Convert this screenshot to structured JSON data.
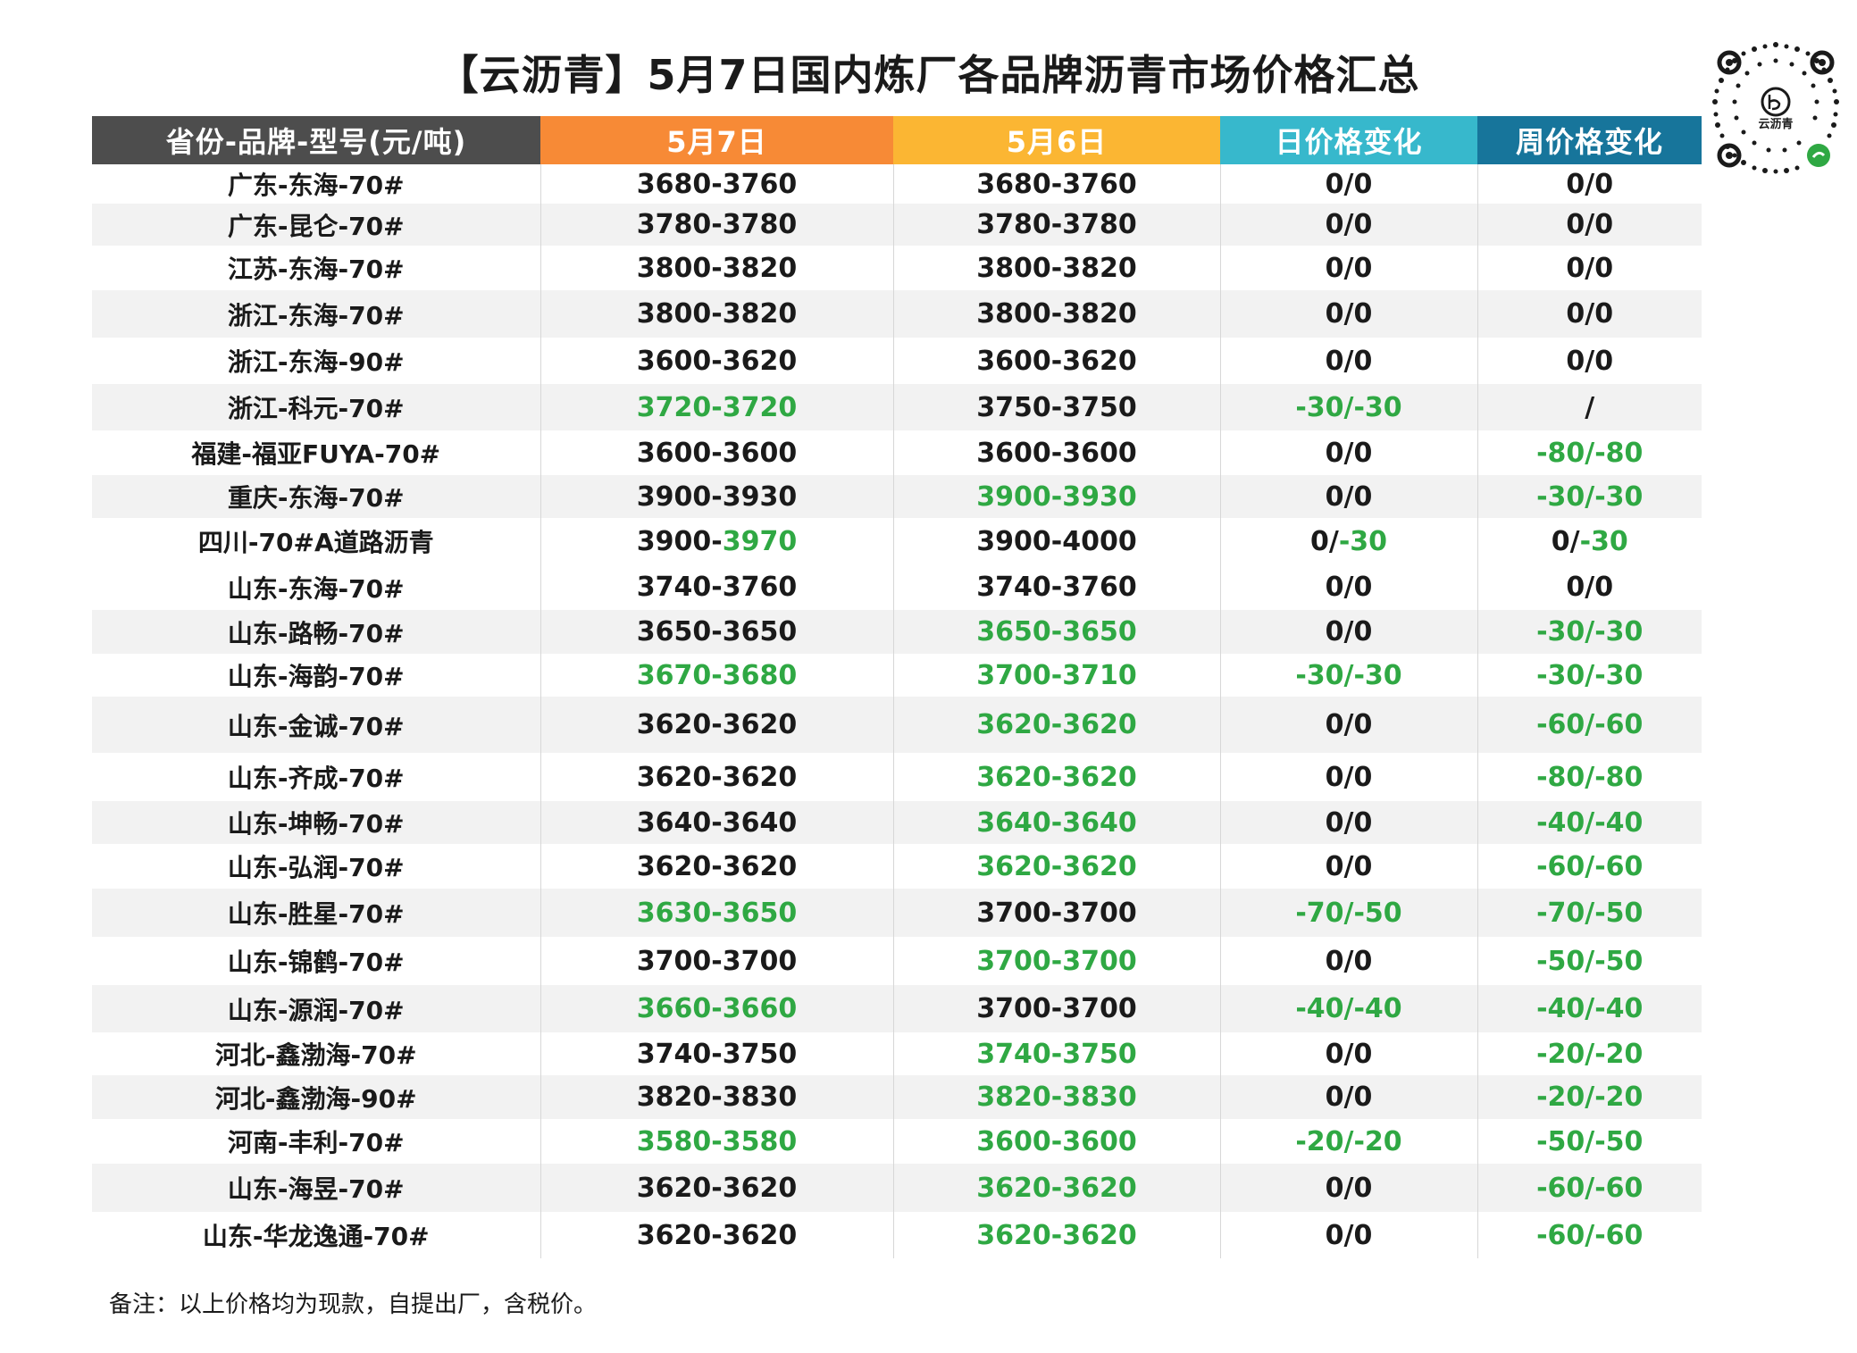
{
  "title": "【云沥青】5月7日国内炼厂各品牌沥青市场价格汇总",
  "logo_text": "云沥青",
  "colors": {
    "header_brand": "#4d4d4d",
    "header_may7": "#f78a36",
    "header_may6": "#fbb633",
    "header_day": "#37b8cc",
    "header_week": "#17759b",
    "green": "#2fa843",
    "row_alt": "#f2f2f2"
  },
  "columns": [
    "省份-品牌-型号(元/吨)",
    "5月7日",
    "5月6日",
    "日价格变化",
    "周价格变化"
  ],
  "rows": [
    {
      "brand": "广东-东海-70#",
      "may7": [
        {
          "t": "3680-3760",
          "c": "d"
        }
      ],
      "may6": [
        {
          "t": "3680-3760",
          "c": "d"
        }
      ],
      "day": [
        {
          "t": "0/0",
          "c": "d"
        }
      ],
      "week": [
        {
          "t": "0/0",
          "c": "d"
        }
      ]
    },
    {
      "brand": "广东-昆仑-70#",
      "may7": [
        {
          "t": "3780-3780",
          "c": "d"
        }
      ],
      "may6": [
        {
          "t": "3780-3780",
          "c": "d"
        }
      ],
      "day": [
        {
          "t": "0/0",
          "c": "d"
        }
      ],
      "week": [
        {
          "t": "0/0",
          "c": "d"
        }
      ]
    },
    {
      "brand": "江苏-东海-70#",
      "may7": [
        {
          "t": "3800-3820",
          "c": "d"
        }
      ],
      "may6": [
        {
          "t": "3800-3820",
          "c": "d"
        }
      ],
      "day": [
        {
          "t": "0/0",
          "c": "d"
        }
      ],
      "week": [
        {
          "t": "0/0",
          "c": "d"
        }
      ]
    },
    {
      "brand": "浙江-东海-70#",
      "may7": [
        {
          "t": "3800-3820",
          "c": "d"
        }
      ],
      "may6": [
        {
          "t": "3800-3820",
          "c": "d"
        }
      ],
      "day": [
        {
          "t": "0/0",
          "c": "d"
        }
      ],
      "week": [
        {
          "t": "0/0",
          "c": "d"
        }
      ]
    },
    {
      "brand": "浙江-东海-90#",
      "may7": [
        {
          "t": "3600-3620",
          "c": "d"
        }
      ],
      "may6": [
        {
          "t": "3600-3620",
          "c": "d"
        }
      ],
      "day": [
        {
          "t": "0/0",
          "c": "d"
        }
      ],
      "week": [
        {
          "t": "0/0",
          "c": "d"
        }
      ]
    },
    {
      "brand": "浙江-科元-70#",
      "may7": [
        {
          "t": "3720-3720",
          "c": "g"
        }
      ],
      "may6": [
        {
          "t": "3750-3750",
          "c": "d"
        }
      ],
      "day": [
        {
          "t": "-30/-30",
          "c": "g"
        }
      ],
      "week": [
        {
          "t": "/",
          "c": "d"
        }
      ]
    },
    {
      "brand": "福建-福亚FUYA-70#",
      "may7": [
        {
          "t": "3600-3600",
          "c": "d"
        }
      ],
      "may6": [
        {
          "t": "3600-3600",
          "c": "d"
        }
      ],
      "day": [
        {
          "t": "0/0",
          "c": "d"
        }
      ],
      "week": [
        {
          "t": "-80/-80",
          "c": "g"
        }
      ]
    },
    {
      "brand": "重庆-东海-70#",
      "may7": [
        {
          "t": "3900-3930",
          "c": "d"
        }
      ],
      "may6": [
        {
          "t": "3900-3930",
          "c": "g"
        }
      ],
      "day": [
        {
          "t": "0/0",
          "c": "d"
        }
      ],
      "week": [
        {
          "t": "-30/-30",
          "c": "g"
        }
      ]
    },
    {
      "brand": "四川-70#A道路沥青",
      "may7": [
        {
          "t": "3900-",
          "c": "d"
        },
        {
          "t": "3970",
          "c": "g"
        }
      ],
      "may6": [
        {
          "t": "3900-4000",
          "c": "d"
        }
      ],
      "day": [
        {
          "t": "0/",
          "c": "d"
        },
        {
          "t": "-30",
          "c": "g"
        }
      ],
      "week": [
        {
          "t": "0/",
          "c": "d"
        },
        {
          "t": "-30",
          "c": "g"
        }
      ]
    },
    {
      "brand": "山东-东海-70#",
      "may7": [
        {
          "t": "3740-3760",
          "c": "d"
        }
      ],
      "may6": [
        {
          "t": "3740-3760",
          "c": "d"
        }
      ],
      "day": [
        {
          "t": "0/0",
          "c": "d"
        }
      ],
      "week": [
        {
          "t": "0/0",
          "c": "d"
        }
      ]
    },
    {
      "brand": "山东-路畅-70#",
      "may7": [
        {
          "t": "3650-3650",
          "c": "d"
        }
      ],
      "may6": [
        {
          "t": "3650-3650",
          "c": "g"
        }
      ],
      "day": [
        {
          "t": "0/0",
          "c": "d"
        }
      ],
      "week": [
        {
          "t": "-30/-30",
          "c": "g"
        }
      ]
    },
    {
      "brand": "山东-海韵-70#",
      "may7": [
        {
          "t": "3670-3680",
          "c": "g"
        }
      ],
      "may6": [
        {
          "t": "3700-3710",
          "c": "g"
        }
      ],
      "day": [
        {
          "t": "-30/-30",
          "c": "g"
        }
      ],
      "week": [
        {
          "t": "-30/-30",
          "c": "g"
        }
      ]
    },
    {
      "brand": "山东-金诚-70#",
      "may7": [
        {
          "t": "3620-3620",
          "c": "d"
        }
      ],
      "may6": [
        {
          "t": "3620-3620",
          "c": "g"
        }
      ],
      "day": [
        {
          "t": "0/0",
          "c": "d"
        }
      ],
      "week": [
        {
          "t": "-60/-60",
          "c": "g"
        }
      ]
    },
    {
      "brand": "山东-齐成-70#",
      "may7": [
        {
          "t": "3620-3620",
          "c": "d"
        }
      ],
      "may6": [
        {
          "t": "3620-3620",
          "c": "g"
        }
      ],
      "day": [
        {
          "t": "0/0",
          "c": "d"
        }
      ],
      "week": [
        {
          "t": "-80/-80",
          "c": "g"
        }
      ]
    },
    {
      "brand": "山东-坤畅-70#",
      "may7": [
        {
          "t": "3640-3640",
          "c": "d"
        }
      ],
      "may6": [
        {
          "t": "3640-3640",
          "c": "g"
        }
      ],
      "day": [
        {
          "t": "0/0",
          "c": "d"
        }
      ],
      "week": [
        {
          "t": "-40/-40",
          "c": "g"
        }
      ]
    },
    {
      "brand": "山东-弘润-70#",
      "may7": [
        {
          "t": "3620-3620",
          "c": "d"
        }
      ],
      "may6": [
        {
          "t": "3620-3620",
          "c": "g"
        }
      ],
      "day": [
        {
          "t": "0/0",
          "c": "d"
        }
      ],
      "week": [
        {
          "t": "-60/-60",
          "c": "g"
        }
      ]
    },
    {
      "brand": "山东-胜星-70#",
      "may7": [
        {
          "t": "3630-3650",
          "c": "g"
        }
      ],
      "may6": [
        {
          "t": "3700-3700",
          "c": "d"
        }
      ],
      "day": [
        {
          "t": "-70/-50",
          "c": "g"
        }
      ],
      "week": [
        {
          "t": "-70/-50",
          "c": "g"
        }
      ]
    },
    {
      "brand": "山东-锦鹤-70#",
      "may7": [
        {
          "t": "3700-3700",
          "c": "d"
        }
      ],
      "may6": [
        {
          "t": "3700-3700",
          "c": "g"
        }
      ],
      "day": [
        {
          "t": "0/0",
          "c": "d"
        }
      ],
      "week": [
        {
          "t": "-50/-50",
          "c": "g"
        }
      ]
    },
    {
      "brand": "山东-源润-70#",
      "may7": [
        {
          "t": "3660-3660",
          "c": "g"
        }
      ],
      "may6": [
        {
          "t": "3700-3700",
          "c": "d"
        }
      ],
      "day": [
        {
          "t": "-40/-40",
          "c": "g"
        }
      ],
      "week": [
        {
          "t": "-40/-40",
          "c": "g"
        }
      ]
    },
    {
      "brand": "河北-鑫渤海-70#",
      "may7": [
        {
          "t": "3740-3750",
          "c": "d"
        }
      ],
      "may6": [
        {
          "t": "3740-3750",
          "c": "g"
        }
      ],
      "day": [
        {
          "t": "0/0",
          "c": "d"
        }
      ],
      "week": [
        {
          "t": "-20/-20",
          "c": "g"
        }
      ]
    },
    {
      "brand": "河北-鑫渤海-90#",
      "may7": [
        {
          "t": "3820-3830",
          "c": "d"
        }
      ],
      "may6": [
        {
          "t": "3820-3830",
          "c": "g"
        }
      ],
      "day": [
        {
          "t": "0/0",
          "c": "d"
        }
      ],
      "week": [
        {
          "t": "-20/-20",
          "c": "g"
        }
      ]
    },
    {
      "brand": "河南-丰利-70#",
      "may7": [
        {
          "t": "3580-3580",
          "c": "g"
        }
      ],
      "may6": [
        {
          "t": "3600-3600",
          "c": "g"
        }
      ],
      "day": [
        {
          "t": "-20/-20",
          "c": "g"
        }
      ],
      "week": [
        {
          "t": "-50/-50",
          "c": "g"
        }
      ]
    },
    {
      "brand": "山东-海昱-70#",
      "may7": [
        {
          "t": "3620-3620",
          "c": "d"
        }
      ],
      "may6": [
        {
          "t": "3620-3620",
          "c": "g"
        }
      ],
      "day": [
        {
          "t": "0/0",
          "c": "d"
        }
      ],
      "week": [
        {
          "t": "-60/-60",
          "c": "g"
        }
      ]
    },
    {
      "brand": "山东-华龙逸通-70#",
      "may7": [
        {
          "t": "3620-3620",
          "c": "d"
        }
      ],
      "may6": [
        {
          "t": "3620-3620",
          "c": "g"
        }
      ],
      "day": [
        {
          "t": "0/0",
          "c": "d"
        }
      ],
      "week": [
        {
          "t": "-60/-60",
          "c": "g"
        }
      ]
    }
  ],
  "note": "备注：以上价格均为现款，自提出厂，含税价。"
}
